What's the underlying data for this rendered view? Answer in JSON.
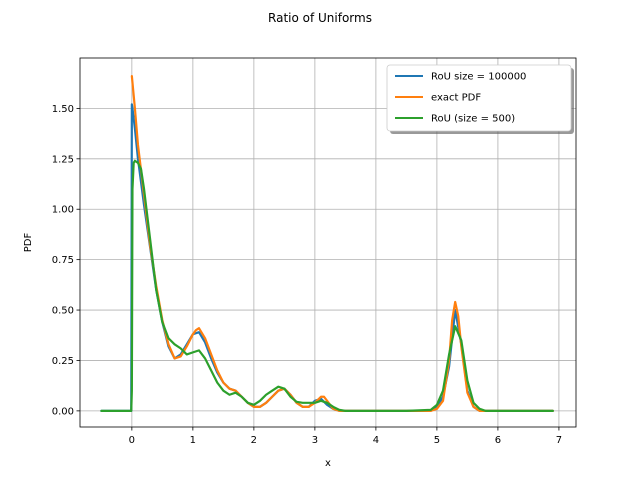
{
  "chart_data": {
    "type": "line",
    "title": "Ratio of Uniforms",
    "xlabel": "x",
    "ylabel": "PDF",
    "xlim": [
      -0.85,
      7.28
    ],
    "ylim": [
      -0.08,
      1.75
    ],
    "xticks": [
      0,
      1,
      2,
      3,
      4,
      5,
      6,
      7
    ],
    "xtick_labels": [
      "0",
      "1",
      "2",
      "3",
      "4",
      "5",
      "6",
      "7"
    ],
    "yticks": [
      0,
      0.25,
      0.5,
      0.75,
      1.0,
      1.25,
      1.5
    ],
    "ytick_labels": [
      "0.00",
      "0.25",
      "0.50",
      "0.75",
      "1.00",
      "1.25",
      "1.50"
    ],
    "grid": true,
    "legend_position": "top-right",
    "series": [
      {
        "name": "RoU size = 100000",
        "color": "#1f77b4",
        "x": [
          -0.5,
          -0.01,
          0,
          0.01,
          0.05,
          0.1,
          0.2,
          0.3,
          0.4,
          0.5,
          0.6,
          0.7,
          0.8,
          0.9,
          1.0,
          1.1,
          1.2,
          1.3,
          1.4,
          1.5,
          1.6,
          1.7,
          1.8,
          1.9,
          2.0,
          2.1,
          2.2,
          2.3,
          2.4,
          2.5,
          2.6,
          2.7,
          2.8,
          2.9,
          3.0,
          3.1,
          3.2,
          3.3,
          3.4,
          3.5,
          3.6,
          4.0,
          4.5,
          4.9,
          5.0,
          5.1,
          5.2,
          5.3,
          5.4,
          5.5,
          5.6,
          5.7,
          5.8,
          6.0,
          6.5,
          6.9
        ],
        "y": [
          0,
          0,
          1.52,
          1.5,
          1.4,
          1.25,
          1.02,
          0.81,
          0.6,
          0.44,
          0.32,
          0.26,
          0.28,
          0.33,
          0.38,
          0.39,
          0.34,
          0.26,
          0.19,
          0.14,
          0.11,
          0.1,
          0.07,
          0.04,
          0.02,
          0.02,
          0.04,
          0.07,
          0.1,
          0.11,
          0.08,
          0.04,
          0.02,
          0.02,
          0.05,
          0.06,
          0.03,
          0.01,
          0,
          0,
          0,
          0,
          0,
          0,
          0.02,
          0.07,
          0.22,
          0.5,
          0.33,
          0.1,
          0.02,
          0,
          0,
          0,
          0,
          0
        ]
      },
      {
        "name": "exact PDF",
        "color": "#ff7f0e",
        "x": [
          0,
          0.05,
          0.1,
          0.2,
          0.3,
          0.4,
          0.5,
          0.6,
          0.7,
          0.8,
          0.9,
          1.0,
          1.05,
          1.1,
          1.2,
          1.3,
          1.4,
          1.5,
          1.6,
          1.7,
          1.8,
          1.9,
          2.0,
          2.1,
          2.2,
          2.3,
          2.4,
          2.5,
          2.6,
          2.7,
          2.8,
          2.9,
          3.0,
          3.1,
          3.15,
          3.2,
          3.3,
          3.4,
          3.5,
          3.6,
          4.0,
          4.5,
          4.9,
          5.0,
          5.1,
          5.2,
          5.25,
          5.3,
          5.35,
          5.4,
          5.5,
          5.6,
          5.7,
          5.8,
          6.0,
          6.5,
          6.9
        ],
        "y": [
          1.66,
          1.5,
          1.32,
          1.07,
          0.82,
          0.62,
          0.45,
          0.33,
          0.26,
          0.27,
          0.32,
          0.38,
          0.4,
          0.41,
          0.36,
          0.28,
          0.2,
          0.14,
          0.11,
          0.1,
          0.07,
          0.04,
          0.02,
          0.02,
          0.04,
          0.07,
          0.1,
          0.11,
          0.08,
          0.04,
          0.02,
          0.02,
          0.04,
          0.07,
          0.07,
          0.05,
          0.01,
          0,
          0,
          0,
          0,
          0,
          0,
          0.01,
          0.05,
          0.25,
          0.45,
          0.54,
          0.47,
          0.32,
          0.09,
          0.02,
          0,
          0,
          0,
          0,
          0
        ]
      },
      {
        "name": "RoU (size = 500)",
        "color": "#2ca02c",
        "x": [
          -0.5,
          -0.01,
          0,
          0.01,
          0.03,
          0.05,
          0.1,
          0.15,
          0.2,
          0.3,
          0.4,
          0.5,
          0.6,
          0.7,
          0.8,
          0.9,
          1.0,
          1.1,
          1.2,
          1.3,
          1.4,
          1.5,
          1.6,
          1.7,
          1.8,
          1.9,
          2.0,
          2.1,
          2.2,
          2.3,
          2.4,
          2.5,
          2.6,
          2.7,
          2.8,
          2.9,
          3.0,
          3.1,
          3.2,
          3.3,
          3.4,
          3.5,
          3.6,
          4.0,
          4.5,
          4.9,
          5.0,
          5.1,
          5.2,
          5.3,
          5.4,
          5.5,
          5.6,
          5.7,
          5.8,
          6.0,
          6.5,
          6.9
        ],
        "y": [
          0,
          0,
          0.1,
          1.1,
          1.23,
          1.24,
          1.23,
          1.2,
          1.1,
          0.85,
          0.6,
          0.44,
          0.36,
          0.33,
          0.31,
          0.28,
          0.29,
          0.3,
          0.26,
          0.2,
          0.14,
          0.1,
          0.08,
          0.09,
          0.07,
          0.04,
          0.03,
          0.05,
          0.08,
          0.1,
          0.12,
          0.11,
          0.07,
          0.045,
          0.04,
          0.04,
          0.04,
          0.05,
          0.04,
          0.02,
          0.005,
          0,
          0,
          0,
          0,
          0.005,
          0.03,
          0.1,
          0.28,
          0.42,
          0.35,
          0.15,
          0.04,
          0.01,
          0,
          0,
          0,
          0
        ]
      }
    ]
  }
}
